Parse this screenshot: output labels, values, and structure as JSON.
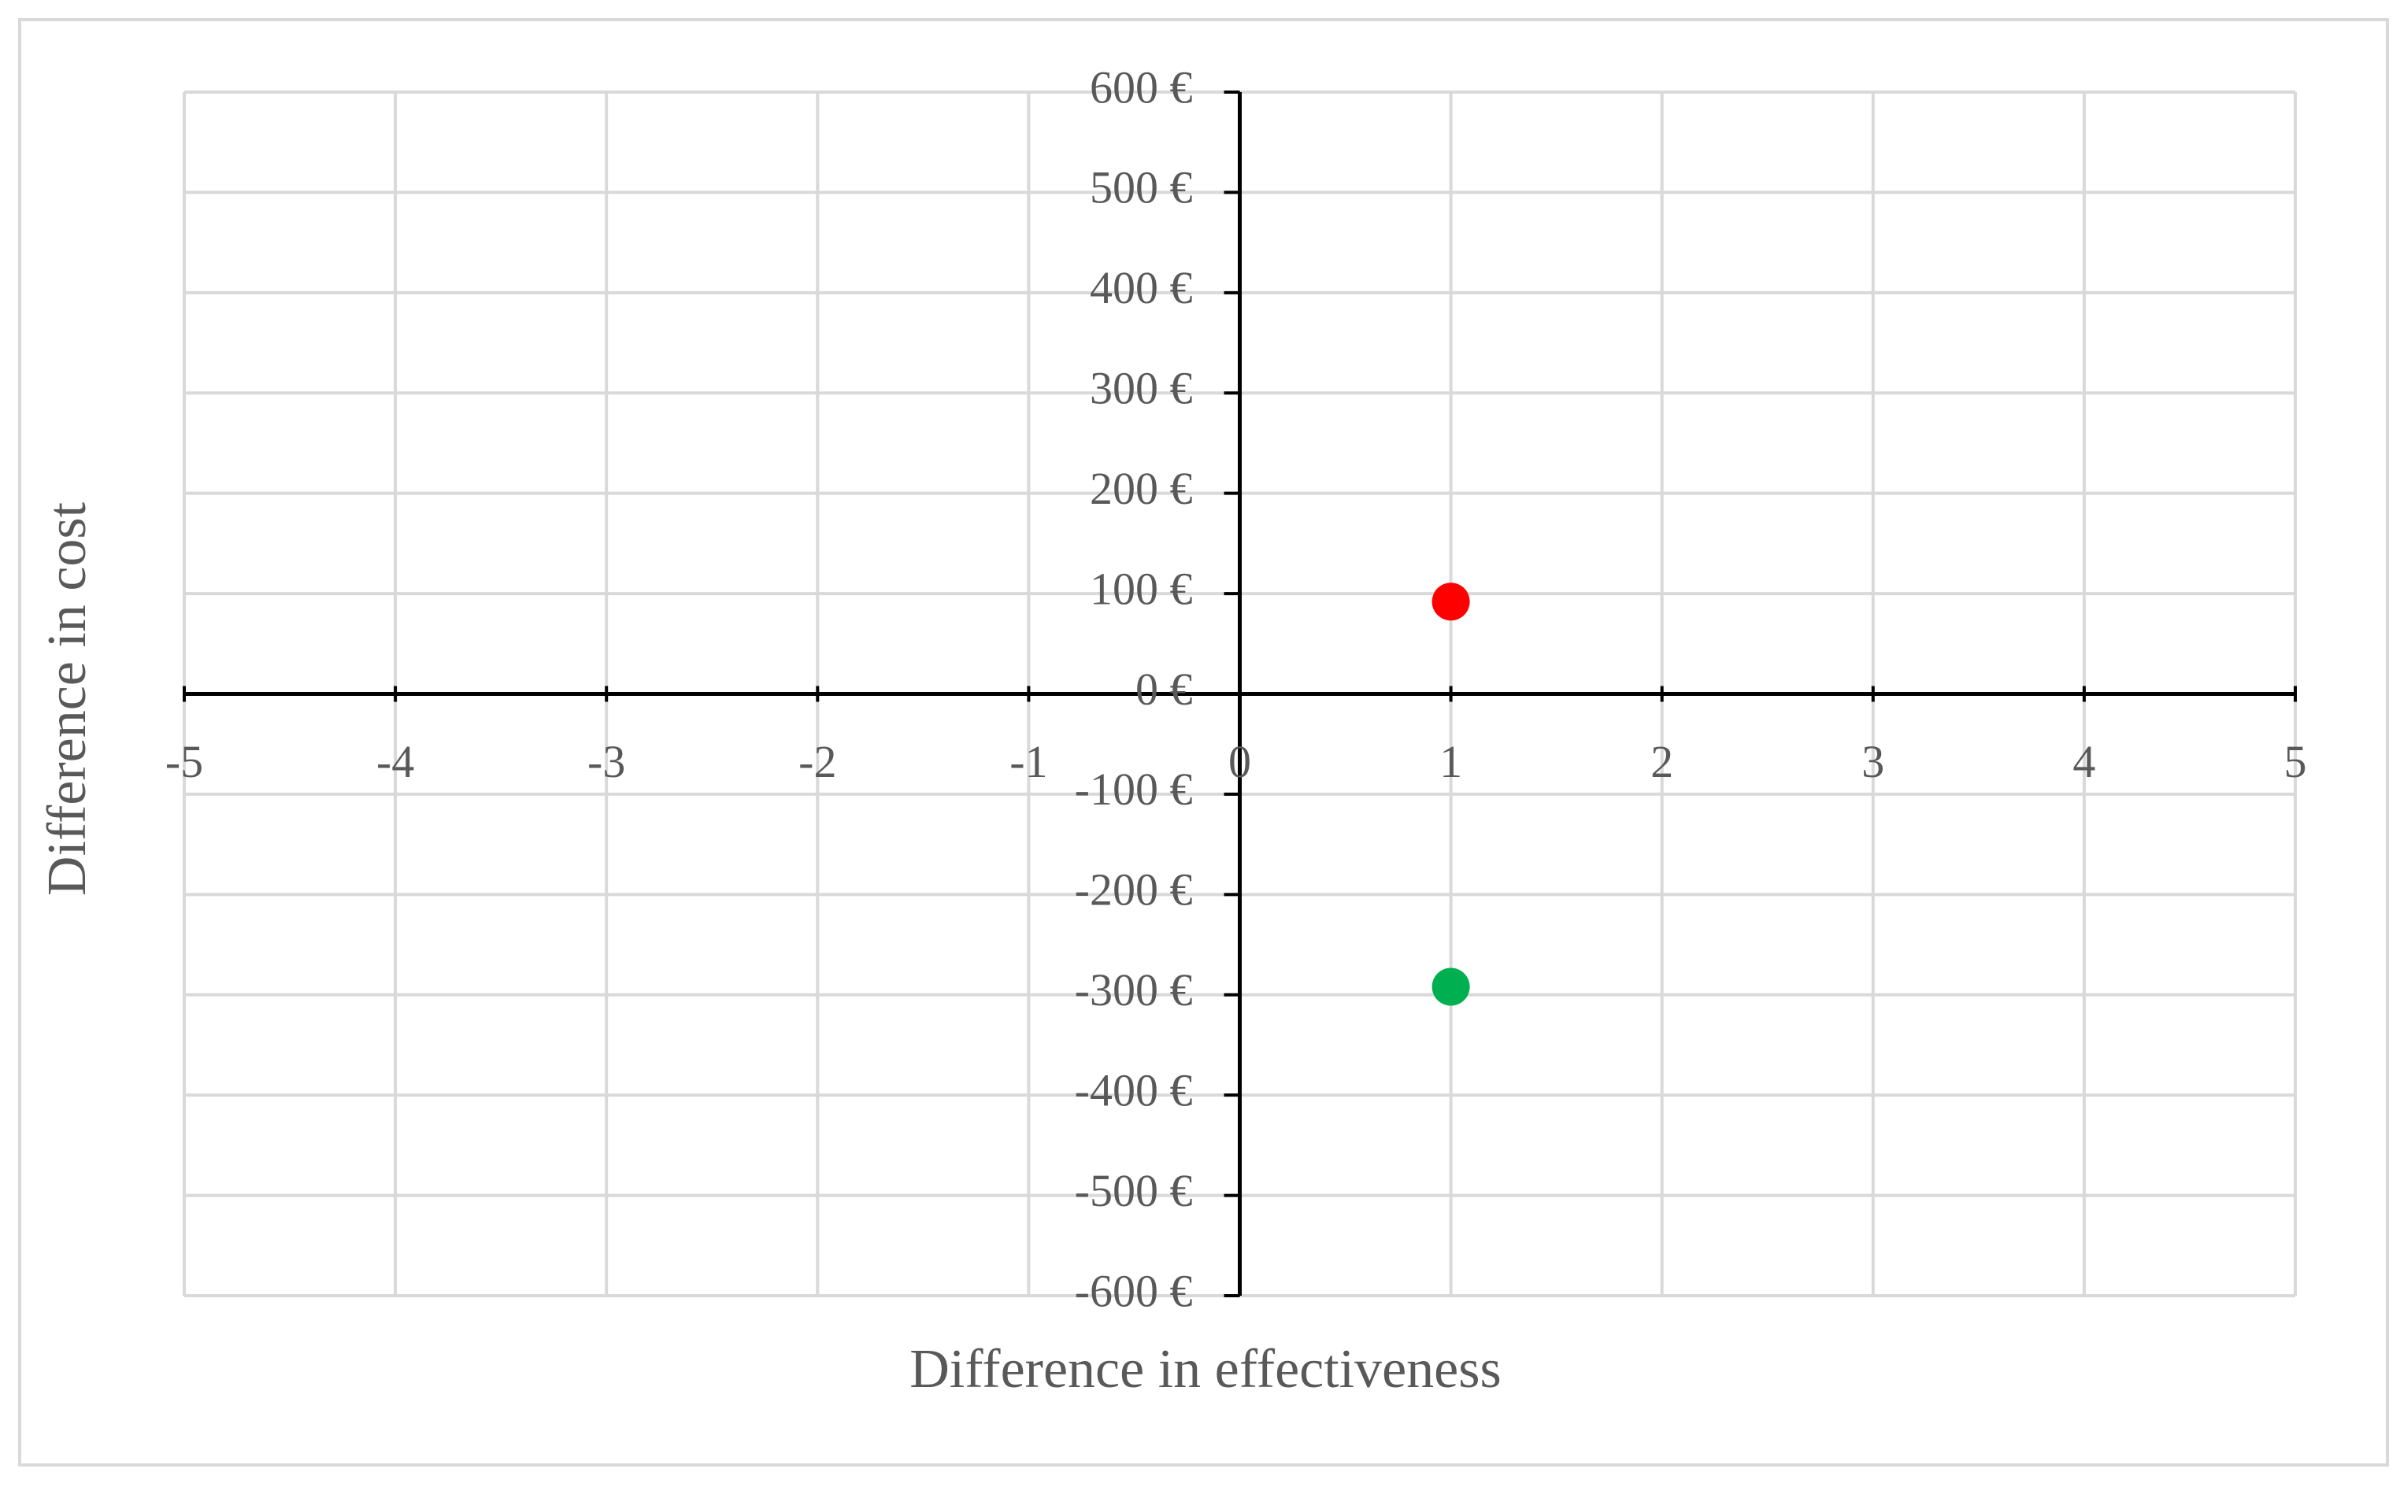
{
  "chart_data": {
    "type": "scatter",
    "x_label": "Difference in effectiveness",
    "y_label": "Difference in cost",
    "x": [
      1,
      1
    ],
    "values": [
      92,
      -292
    ],
    "colors": [
      "#ff0000",
      "#00b050"
    ],
    "xlim": [
      -5,
      5
    ],
    "xticks": [
      -5,
      -4,
      -3,
      -2,
      -1,
      0,
      1,
      2,
      3,
      4,
      5
    ],
    "ylim": [
      -600,
      600
    ],
    "yticks": [
      {
        "value": -600,
        "label": "-600 €"
      },
      {
        "value": -500,
        "label": "-500 €"
      },
      {
        "value": -400,
        "label": "-400 €"
      },
      {
        "value": -300,
        "label": "-300 €"
      },
      {
        "value": -200,
        "label": "-200 €"
      },
      {
        "value": -100,
        "label": "-100 €"
      },
      {
        "value": 0,
        "label": "0 €"
      },
      {
        "value": 100,
        "label": "100 €"
      },
      {
        "value": 200,
        "label": "200 €"
      },
      {
        "value": 300,
        "label": "300 €"
      },
      {
        "value": 400,
        "label": "400 €"
      },
      {
        "value": 500,
        "label": "500 €"
      },
      {
        "value": 600,
        "label": "600 €"
      }
    ],
    "grid": true
  }
}
